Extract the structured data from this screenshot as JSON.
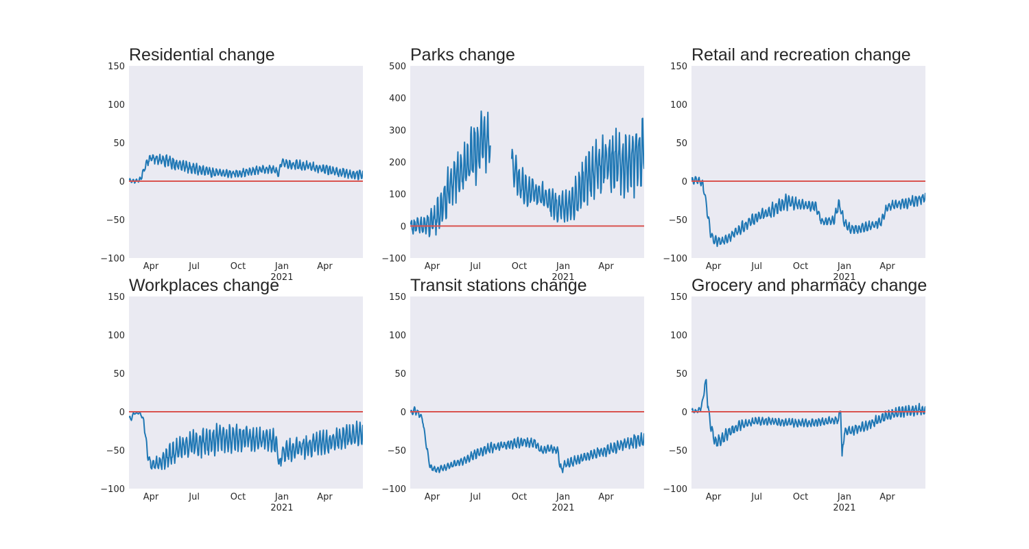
{
  "chart_data": [
    {
      "type": "line",
      "title": "Residential change",
      "ylim": [
        -100,
        150
      ],
      "yticks": [
        -100,
        -50,
        0,
        50,
        100,
        150
      ],
      "xrange": [
        "2020-02-15",
        "2021-06-20"
      ],
      "xticks": [
        {
          "date": "2020-04-01",
          "label": "Apr"
        },
        {
          "date": "2020-07-01",
          "label": "Jul"
        },
        {
          "date": "2020-10-01",
          "label": "Oct"
        },
        {
          "date": "2021-01-01",
          "label": "Jan",
          "sublabel": "2021"
        },
        {
          "date": "2021-04-01",
          "label": "Apr"
        }
      ],
      "reference_line": 0,
      "series": [
        {
          "x": [
            "2020-02-15",
            "2020-03-01",
            "2020-03-10",
            "2020-03-17",
            "2020-03-24",
            "2020-04-01",
            "2020-04-15",
            "2020-05-01",
            "2020-05-15",
            "2020-06-01",
            "2020-07-01",
            "2020-08-01",
            "2020-09-01",
            "2020-10-01",
            "2020-11-01",
            "2020-11-15",
            "2020-12-01",
            "2020-12-15",
            "2020-12-22",
            "2020-12-25",
            "2021-01-01",
            "2021-01-15",
            "2021-02-01",
            "2021-03-01",
            "2021-04-01",
            "2021-05-01",
            "2021-06-01",
            "2021-06-20"
          ],
          "y": [
            1,
            0,
            2,
            14,
            25,
            30,
            29,
            27,
            24,
            21,
            16,
            12,
            10,
            10,
            13,
            15,
            16,
            15,
            12,
            10,
            26,
            22,
            21,
            19,
            15,
            12,
            9,
            8
          ],
          "amplitude": [
            2,
            2,
            3,
            3,
            4,
            6,
            6,
            7,
            7,
            6,
            6,
            5,
            4,
            4,
            4,
            4,
            4,
            4,
            4,
            4,
            5,
            5,
            5,
            5,
            5,
            5,
            5,
            5
          ]
        }
      ]
    },
    {
      "type": "line",
      "title": "Parks change",
      "ylim": [
        -100,
        500
      ],
      "yticks": [
        -100,
        0,
        100,
        200,
        300,
        400,
        500
      ],
      "xrange": [
        "2020-02-15",
        "2021-06-20"
      ],
      "xticks": [
        {
          "date": "2020-04-01",
          "label": "Apr"
        },
        {
          "date": "2020-07-01",
          "label": "Jul"
        },
        {
          "date": "2020-10-01",
          "label": "Oct"
        },
        {
          "date": "2021-01-01",
          "label": "Jan",
          "sublabel": "2021"
        },
        {
          "date": "2021-04-01",
          "label": "Apr"
        }
      ],
      "reference_line": 0,
      "series": [
        {
          "x": [
            "2020-02-15",
            "2020-03-15",
            "2020-04-01",
            "2020-04-15",
            "2020-05-01",
            "2020-05-15",
            "2020-06-01",
            "2020-06-15",
            "2020-07-01",
            "2020-07-15",
            "2020-08-01"
          ],
          "y": [
            0,
            0,
            10,
            40,
            90,
            140,
            170,
            190,
            230,
            280,
            240
          ],
          "amplitude": [
            20,
            25,
            35,
            50,
            60,
            60,
            60,
            65,
            80,
            85,
            70
          ]
        },
        {
          "x": [
            "2020-09-15",
            "2020-10-01",
            "2020-10-15",
            "2020-11-01",
            "2020-11-15",
            "2020-12-01",
            "2020-12-15",
            "2021-01-01",
            "2021-01-15",
            "2021-02-01",
            "2021-02-15",
            "2021-03-01",
            "2021-03-15",
            "2021-04-01",
            "2021-04-15",
            "2021-05-01",
            "2021-05-15",
            "2021-06-01",
            "2021-06-20"
          ],
          "y": [
            200,
            140,
            110,
            100,
            100,
            80,
            60,
            60,
            70,
            100,
            140,
            170,
            190,
            200,
            200,
            190,
            200,
            210,
            230
          ],
          "amplitude": [
            40,
            45,
            40,
            40,
            35,
            35,
            35,
            40,
            45,
            55,
            65,
            70,
            75,
            80,
            80,
            75,
            85,
            90,
            90
          ]
        }
      ]
    },
    {
      "type": "line",
      "title": "Retail and recreation change",
      "ylim": [
        -100,
        150
      ],
      "yticks": [
        -100,
        -50,
        0,
        50,
        100,
        150
      ],
      "xrange": [
        "2020-02-15",
        "2021-06-20"
      ],
      "xticks": [
        {
          "date": "2020-04-01",
          "label": "Apr"
        },
        {
          "date": "2020-07-01",
          "label": "Jul"
        },
        {
          "date": "2020-10-01",
          "label": "Oct"
        },
        {
          "date": "2021-01-01",
          "label": "Jan",
          "sublabel": "2021"
        },
        {
          "date": "2021-04-01",
          "label": "Apr"
        }
      ],
      "reference_line": 0,
      "series": [
        {
          "x": [
            "2020-02-15",
            "2020-03-01",
            "2020-03-10",
            "2020-03-17",
            "2020-03-25",
            "2020-04-01",
            "2020-04-15",
            "2020-05-01",
            "2020-05-15",
            "2020-06-01",
            "2020-07-01",
            "2020-08-01",
            "2020-09-01",
            "2020-10-01",
            "2020-10-15",
            "2020-11-01",
            "2020-11-15",
            "2020-12-01",
            "2020-12-10",
            "2020-12-20",
            "2020-12-26",
            "2021-01-01",
            "2021-01-15",
            "2021-02-01",
            "2021-03-01",
            "2021-03-20",
            "2021-04-01",
            "2021-05-01",
            "2021-06-01",
            "2021-06-20"
          ],
          "y": [
            0,
            2,
            -5,
            -30,
            -65,
            -78,
            -78,
            -74,
            -68,
            -60,
            -47,
            -38,
            -27,
            -30,
            -32,
            -32,
            -53,
            -52,
            -50,
            -30,
            -40,
            -55,
            -63,
            -62,
            -58,
            -52,
            -33,
            -30,
            -25,
            -22
          ],
          "amplitude": [
            4,
            4,
            5,
            5,
            5,
            5,
            5,
            5,
            5,
            6,
            6,
            7,
            8,
            5,
            5,
            5,
            5,
            5,
            5,
            5,
            5,
            5,
            5,
            5,
            5,
            5,
            5,
            5,
            6,
            6
          ]
        }
      ]
    },
    {
      "type": "line",
      "title": "Workplaces change",
      "ylim": [
        -100,
        150
      ],
      "yticks": [
        -100,
        -50,
        0,
        50,
        100,
        150
      ],
      "xrange": [
        "2020-02-15",
        "2021-06-20"
      ],
      "xticks": [
        {
          "date": "2020-04-01",
          "label": "Apr"
        },
        {
          "date": "2020-07-01",
          "label": "Jul"
        },
        {
          "date": "2020-10-01",
          "label": "Oct"
        },
        {
          "date": "2021-01-01",
          "label": "Jan",
          "sublabel": "2021"
        },
        {
          "date": "2021-04-01",
          "label": "Apr"
        }
      ],
      "reference_line": 0,
      "series": [
        {
          "x": [
            "2020-02-15",
            "2020-02-20",
            "2020-02-24",
            "2020-03-01",
            "2020-03-10",
            "2020-03-17",
            "2020-03-25",
            "2020-04-01",
            "2020-04-15",
            "2020-05-01",
            "2020-05-15",
            "2020-06-01",
            "2020-07-01",
            "2020-08-01",
            "2020-09-01",
            "2020-10-01",
            "2020-11-01",
            "2020-12-01",
            "2020-12-20",
            "2020-12-28",
            "2021-01-01",
            "2021-01-15",
            "2021-02-01",
            "2021-03-01",
            "2021-04-01",
            "2021-05-01",
            "2021-06-01",
            "2021-06-20"
          ],
          "y": [
            -8,
            -10,
            -2,
            -2,
            -2,
            -12,
            -55,
            -70,
            -68,
            -62,
            -55,
            -48,
            -42,
            -38,
            -35,
            -33,
            -36,
            -36,
            -40,
            -72,
            -55,
            -50,
            -48,
            -44,
            -40,
            -36,
            -30,
            -26
          ],
          "amplitude": [
            2,
            2,
            1,
            1,
            1,
            3,
            5,
            6,
            8,
            10,
            12,
            13,
            14,
            15,
            15,
            14,
            11,
            12,
            12,
            8,
            9,
            11,
            11,
            12,
            12,
            12,
            13,
            13
          ]
        }
      ]
    },
    {
      "type": "line",
      "title": "Transit stations change",
      "ylim": [
        -100,
        150
      ],
      "yticks": [
        -100,
        -50,
        0,
        50,
        100,
        150
      ],
      "xrange": [
        "2020-02-15",
        "2021-06-20"
      ],
      "xticks": [
        {
          "date": "2020-04-01",
          "label": "Apr"
        },
        {
          "date": "2020-07-01",
          "label": "Jul"
        },
        {
          "date": "2020-10-01",
          "label": "Oct"
        },
        {
          "date": "2021-01-01",
          "label": "Jan",
          "sublabel": "2021"
        },
        {
          "date": "2021-04-01",
          "label": "Apr"
        }
      ],
      "reference_line": 0,
      "series": [
        {
          "x": [
            "2020-02-15",
            "2020-02-25",
            "2020-03-05",
            "2020-03-12",
            "2020-03-20",
            "2020-03-28",
            "2020-04-10",
            "2020-05-01",
            "2020-06-01",
            "2020-07-01",
            "2020-08-01",
            "2020-09-01",
            "2020-10-01",
            "2020-11-01",
            "2020-11-15",
            "2020-12-01",
            "2020-12-20",
            "2020-12-28",
            "2021-01-01",
            "2021-02-01",
            "2021-03-01",
            "2021-04-01",
            "2021-05-01",
            "2021-06-01",
            "2021-06-20"
          ],
          "y": [
            -2,
            2,
            -3,
            -10,
            -45,
            -72,
            -76,
            -72,
            -65,
            -55,
            -47,
            -43,
            -40,
            -40,
            -50,
            -48,
            -50,
            -78,
            -70,
            -62,
            -56,
            -50,
            -44,
            -38,
            -36
          ],
          "amplitude": [
            3,
            4,
            3,
            3,
            3,
            3,
            3,
            3,
            4,
            5,
            5,
            5,
            5,
            5,
            4,
            4,
            4,
            6,
            5,
            5,
            5,
            6,
            6,
            7,
            7
          ]
        }
      ]
    },
    {
      "type": "line",
      "title": "Grocery and pharmacy change",
      "ylim": [
        -100,
        150
      ],
      "yticks": [
        -100,
        -50,
        0,
        50,
        100,
        150
      ],
      "xrange": [
        "2020-02-15",
        "2021-06-20"
      ],
      "xticks": [
        {
          "date": "2020-04-01",
          "label": "Apr"
        },
        {
          "date": "2020-07-01",
          "label": "Jul"
        },
        {
          "date": "2020-10-01",
          "label": "Oct"
        },
        {
          "date": "2021-01-01",
          "label": "Jan",
          "sublabel": "2021"
        },
        {
          "date": "2021-04-01",
          "label": "Apr"
        }
      ],
      "reference_line": 0,
      "series": [
        {
          "x": [
            "2020-02-15",
            "2020-02-25",
            "2020-03-05",
            "2020-03-10",
            "2020-03-14",
            "2020-03-17",
            "2020-03-20",
            "2020-03-27",
            "2020-04-05",
            "2020-04-20",
            "2020-05-01",
            "2020-05-15",
            "2020-06-01",
            "2020-07-01",
            "2020-08-01",
            "2020-09-01",
            "2020-10-01",
            "2020-11-01",
            "2020-12-01",
            "2020-12-20",
            "2020-12-24",
            "2020-12-27",
            "2021-01-01",
            "2021-01-15",
            "2021-02-01",
            "2021-03-01",
            "2021-04-01",
            "2021-05-01",
            "2021-06-01",
            "2021-06-20"
          ],
          "y": [
            2,
            0,
            4,
            15,
            35,
            40,
            10,
            -20,
            -40,
            -35,
            -28,
            -22,
            -16,
            -12,
            -12,
            -14,
            -15,
            -14,
            -12,
            -10,
            5,
            -60,
            -25,
            -25,
            -22,
            -14,
            -5,
            0,
            2,
            3
          ],
          "amplitude": [
            2,
            2,
            2,
            3,
            3,
            3,
            4,
            6,
            7,
            6,
            6,
            5,
            5,
            4,
            4,
            4,
            4,
            4,
            4,
            4,
            4,
            4,
            5,
            5,
            5,
            5,
            6,
            6,
            6,
            6
          ]
        }
      ]
    }
  ]
}
